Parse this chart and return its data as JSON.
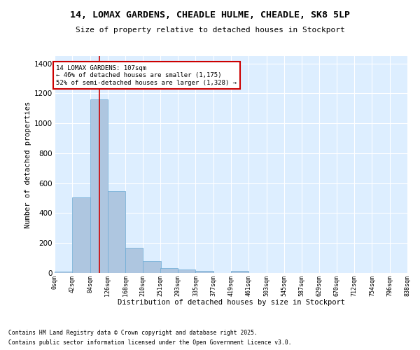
{
  "title_line1": "14, LOMAX GARDENS, CHEADLE HULME, CHEADLE, SK8 5LP",
  "title_line2": "Size of property relative to detached houses in Stockport",
  "xlabel": "Distribution of detached houses by size in Stockport",
  "ylabel": "Number of detached properties",
  "bar_color": "#aec6e0",
  "bar_edge_color": "#6aaad4",
  "background_color": "#ddeeff",
  "grid_color": "#ffffff",
  "annotation_box_color": "#cc0000",
  "property_line_color": "#cc0000",
  "property_size": 107,
  "annotation_text": "14 LOMAX GARDENS: 107sqm\n← 46% of detached houses are smaller (1,175)\n52% of semi-detached houses are larger (1,328) →",
  "bin_edges": [
    0,
    42,
    84,
    126,
    168,
    210,
    251,
    293,
    335,
    377,
    419,
    461,
    503,
    545,
    587,
    629,
    670,
    712,
    754,
    796,
    838
  ],
  "bin_labels": [
    "0sqm",
    "42sqm",
    "84sqm",
    "126sqm",
    "168sqm",
    "210sqm",
    "251sqm",
    "293sqm",
    "335sqm",
    "377sqm",
    "419sqm",
    "461sqm",
    "503sqm",
    "545sqm",
    "587sqm",
    "629sqm",
    "670sqm",
    "712sqm",
    "754sqm",
    "796sqm",
    "838sqm"
  ],
  "bar_heights": [
    10,
    505,
    1160,
    545,
    170,
    80,
    32,
    25,
    15,
    0,
    15,
    0,
    0,
    0,
    0,
    0,
    0,
    0,
    0,
    0
  ],
  "ylim": [
    0,
    1450
  ],
  "xlim": [
    0,
    838
  ],
  "yticks": [
    0,
    200,
    400,
    600,
    800,
    1000,
    1200,
    1400
  ],
  "footnote_line1": "Contains HM Land Registry data © Crown copyright and database right 2025.",
  "footnote_line2": "Contains public sector information licensed under the Open Government Licence v3.0."
}
